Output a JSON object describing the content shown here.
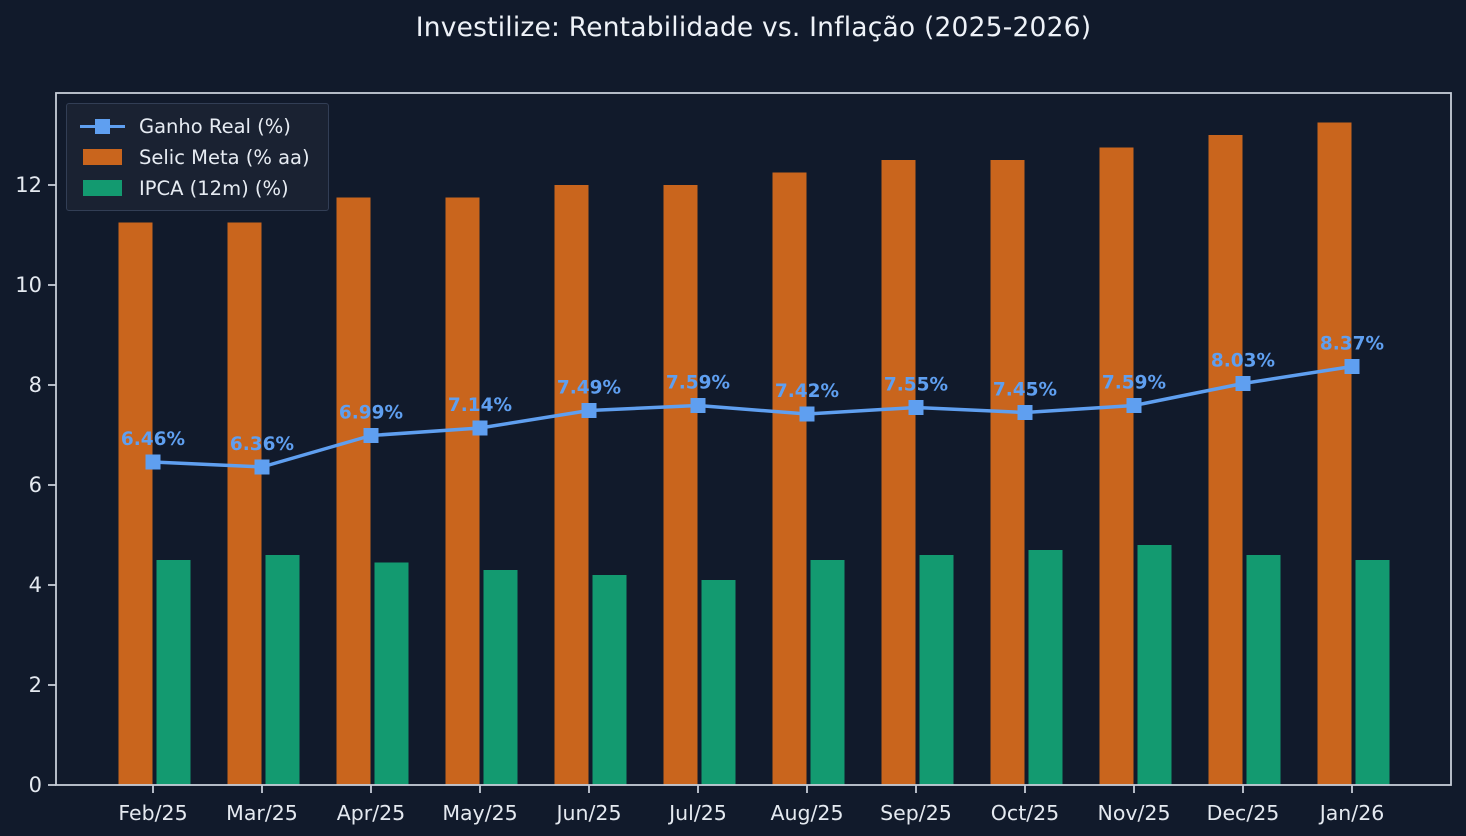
{
  "title": "Investilize: Rentabilidade vs. Inflação (2025-2026)",
  "colors": {
    "background": "#111a2b",
    "axes_background": "#111a2b",
    "spine": "#c6cdd8",
    "tick_text": "#e4e9f0",
    "title_text": "#eef2f8",
    "point_label_text": "#5f9ff0",
    "legend_background": "#1a2232",
    "legend_border": "#323e55",
    "ganho_real_blue": "#5f9ff0",
    "selic_orange": "#c9651d",
    "ipca_green": "#139a70"
  },
  "chart_data": {
    "type": "bar",
    "subtype": "grouped bars with line overlay",
    "title": "Investilize: Rentabilidade vs. Inflação (2025-2026)",
    "categories": [
      "Feb/25",
      "Mar/25",
      "Apr/25",
      "May/25",
      "Jun/25",
      "Jul/25",
      "Aug/25",
      "Sep/25",
      "Oct/25",
      "Nov/25",
      "Dec/25",
      "Jan/26"
    ],
    "series": [
      {
        "name": "Ganho Real (%)",
        "type": "line",
        "color": "#5f9ff0",
        "values": [
          6.46,
          6.36,
          6.99,
          7.14,
          7.49,
          7.59,
          7.42,
          7.55,
          7.45,
          7.59,
          8.03,
          8.37
        ],
        "point_labels": [
          "6.46%",
          "6.36%",
          "6.99%",
          "7.14%",
          "7.49%",
          "7.59%",
          "7.42%",
          "7.55%",
          "7.45%",
          "7.59%",
          "8.03%",
          "8.37%"
        ]
      },
      {
        "name": "Selic Meta (% aa)",
        "type": "bar",
        "color": "#c9651d",
        "values": [
          11.25,
          11.25,
          11.75,
          11.75,
          12.0,
          12.0,
          12.25,
          12.5,
          12.5,
          12.75,
          13.0,
          13.25
        ]
      },
      {
        "name": "IPCA (12m) (%)",
        "type": "bar",
        "color": "#139a70",
        "values": [
          4.5,
          4.6,
          4.45,
          4.3,
          4.2,
          4.1,
          4.5,
          4.6,
          4.7,
          4.8,
          4.6,
          4.5
        ]
      }
    ],
    "xlabel": "",
    "ylabel": "",
    "ylim": [
      0,
      13.84
    ],
    "yticks": [
      0,
      2,
      4,
      6,
      8,
      10,
      12
    ],
    "grid": false,
    "legend_position": "upper left"
  }
}
